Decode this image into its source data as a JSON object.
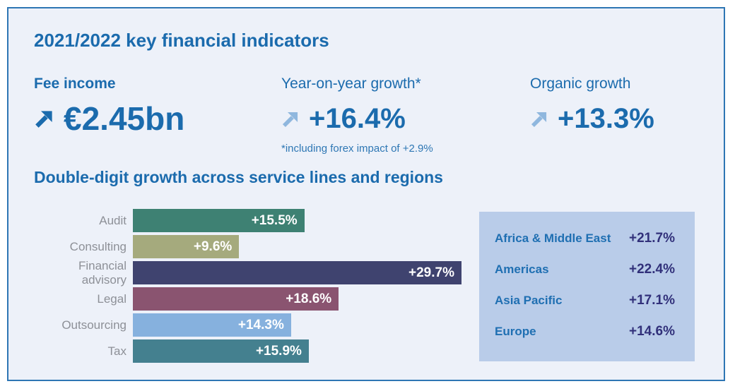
{
  "panel": {
    "title": "2021/2022 key financial indicators"
  },
  "kpis": [
    {
      "label": "Fee income",
      "value": "€2.45bn"
    },
    {
      "label": "Year-on-year growth*",
      "value": "+16.4%",
      "note": "*including forex impact of +2.9%"
    },
    {
      "label": "Organic growth",
      "value": "+13.3%"
    }
  ],
  "section_title": "Double-digit growth across service lines and regions",
  "chart_data": [
    {
      "type": "bar",
      "orientation": "horizontal",
      "categories": [
        "Audit",
        "Consulting",
        "Financial advisory",
        "Legal",
        "Outsourcing",
        "Tax"
      ],
      "values": [
        15.5,
        9.6,
        29.7,
        18.6,
        14.3,
        15.9
      ],
      "data_labels": [
        "+15.5%",
        "+9.6%",
        "+29.7%",
        "+18.6%",
        "+14.3%",
        "+15.9%"
      ],
      "bar_colors": [
        "#3e8173",
        "#a5aa7d",
        "#3f436f",
        "#8a5470",
        "#86b1de",
        "#44808f"
      ],
      "value_unit": "%",
      "xlim": [
        0,
        29.7
      ],
      "grid": false,
      "axes_visible": false,
      "data_label_position": "inside-end"
    },
    {
      "type": "table",
      "rows": [
        {
          "region": "Africa & Middle East",
          "growth": "+21.7%"
        },
        {
          "region": "Americas",
          "growth": "+22.4%"
        },
        {
          "region": "Asia Pacific",
          "growth": "+17.1%"
        },
        {
          "region": "Europe",
          "growth": "+14.6%"
        }
      ]
    }
  ],
  "icons": {
    "trend_arrow": "up-right-arrow"
  },
  "colors": {
    "page_bg": "#ffffff",
    "panel_bg": "#edf1f9",
    "panel_border": "#2e76b4",
    "brand_blue": "#1b6bad",
    "arrow_light": "#8fb7de",
    "note_blue": "#2e77b4",
    "bar_label_gray": "#8d9097",
    "bar_value_text": "#ffffff",
    "regions_bg": "#b9cce9",
    "region_name_blue": "#1f6fb2",
    "region_value_navy": "#31307a"
  }
}
